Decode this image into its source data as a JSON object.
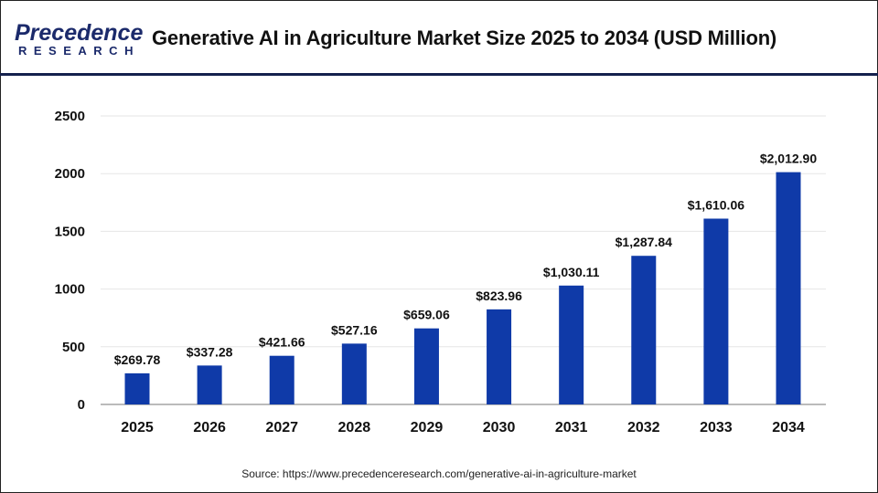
{
  "header": {
    "logo_text_top": "Precedence",
    "logo_text_bottom": "RESEARCH",
    "title": "Generative AI in Agriculture Market Size 2025 to 2034 (USD Million)"
  },
  "chart_data": {
    "type": "bar",
    "title": "Generative AI in Agriculture Market Size 2025 to 2034 (USD Million)",
    "categories": [
      "2025",
      "2026",
      "2027",
      "2028",
      "2029",
      "2030",
      "2031",
      "2032",
      "2033",
      "2034"
    ],
    "values": [
      269.78,
      337.28,
      421.66,
      527.16,
      659.06,
      823.96,
      1030.11,
      1287.84,
      1610.06,
      2012.9
    ],
    "data_labels": [
      "$269.78",
      "$337.28",
      "$421.66",
      "$527.16",
      "$659.06",
      "$823.96",
      "$1,030.11",
      "$1,287.84",
      "$1,610.06",
      "$2,012.90"
    ],
    "yticks": [
      "0",
      "500",
      "1000",
      "1500",
      "2000",
      "2500"
    ],
    "ylim": [
      0,
      2500
    ],
    "xlabel": "",
    "ylabel": "",
    "grid": true,
    "bar_color": "#0f3aa8"
  },
  "footer": {
    "source": "Source: https://www.precedenceresearch.com/generative-ai-in-agriculture-market"
  }
}
